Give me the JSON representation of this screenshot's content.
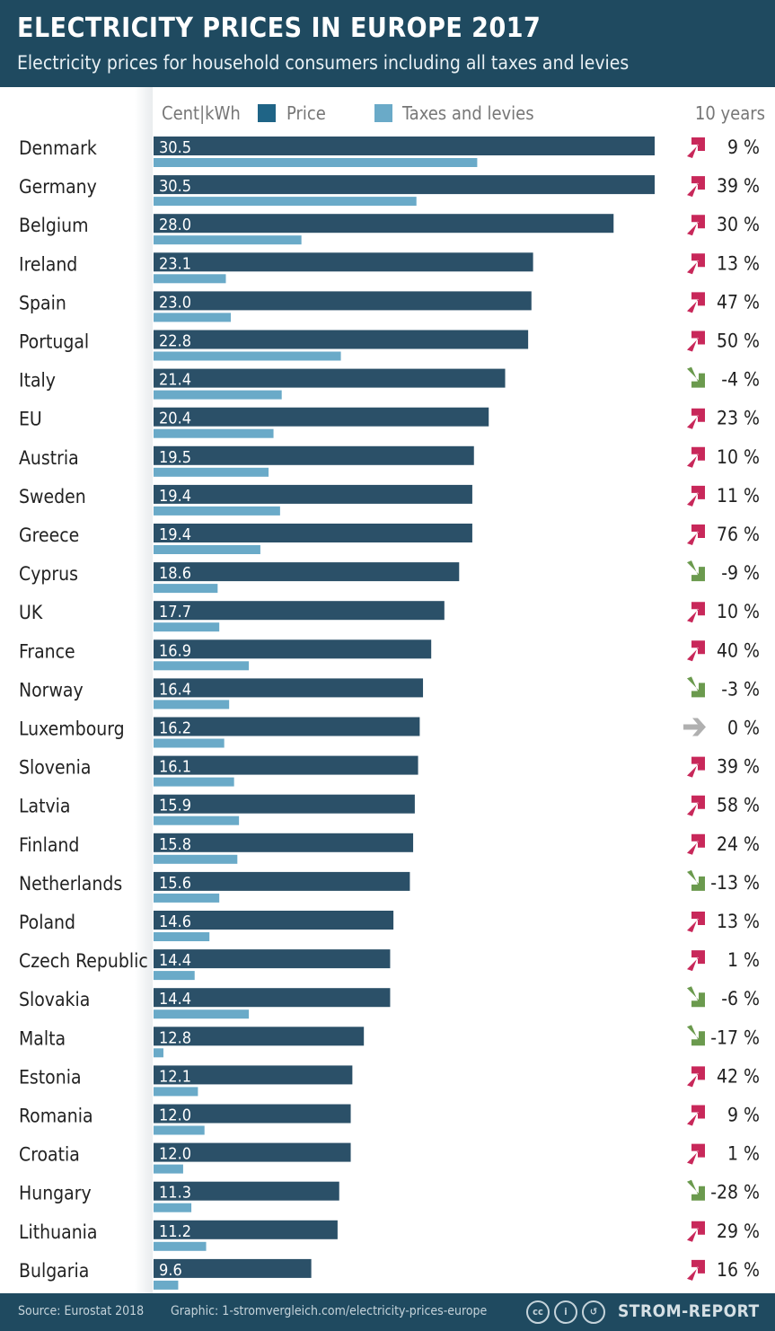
{
  "header": {
    "title": "ELECTRICITY PRICES IN EUROPE 2017",
    "subtitle": "Electricity prices for household consumers including all taxes and levies"
  },
  "footer": {
    "source": "Source: Eurostat 2018",
    "graphic": "Graphic: 1-stromvergleich.com/electricity-prices-europe",
    "brand": "STROM-REPORT",
    "license_icons": [
      "cc",
      "by",
      "sa"
    ]
  },
  "chart_data": {
    "type": "bar",
    "orientation": "horizontal",
    "unit_label": "Cent|kWh",
    "change_header": "10 years",
    "legend": [
      "Price",
      "Taxes and levies"
    ],
    "colors": {
      "price": "#2b5068",
      "taxes": "#6aaac8",
      "up": "#c8285a",
      "down": "#6b9a4e",
      "flat": "#b0b0b0"
    },
    "categories": [
      "Denmark",
      "Germany",
      "Belgium",
      "Ireland",
      "Spain",
      "Portugal",
      "Italy",
      "EU",
      "Austria",
      "Sweden",
      "Greece",
      "Cyprus",
      "UK",
      "France",
      "Norway",
      "Luxembourg",
      "Slovenia",
      "Latvia",
      "Finland",
      "Netherlands",
      "Poland",
      "Czech Republic",
      "Slovakia",
      "Malta",
      "Estonia",
      "Romania",
      "Croatia",
      "Hungary",
      "Lithuania",
      "Bulgaria"
    ],
    "series": [
      {
        "name": "Price",
        "values": [
          30.5,
          30.5,
          28.0,
          23.1,
          23.0,
          22.8,
          21.4,
          20.4,
          19.5,
          19.4,
          19.4,
          18.6,
          17.7,
          16.9,
          16.4,
          16.2,
          16.1,
          15.9,
          15.8,
          15.6,
          14.6,
          14.4,
          14.4,
          12.8,
          12.1,
          12.0,
          12.0,
          11.3,
          11.2,
          9.6
        ]
      },
      {
        "name": "Taxes and levies",
        "values": [
          19.7,
          16.0,
          9.0,
          4.4,
          4.7,
          11.4,
          7.8,
          7.3,
          7.0,
          7.7,
          6.5,
          3.9,
          4.0,
          5.8,
          4.6,
          4.3,
          4.9,
          5.2,
          5.1,
          4.0,
          3.4,
          2.5,
          5.8,
          0.6,
          2.7,
          3.1,
          1.8,
          2.3,
          3.2,
          1.5
        ]
      }
    ],
    "change_10y": [
      9,
      39,
      30,
      13,
      47,
      50,
      -4,
      23,
      10,
      11,
      76,
      -9,
      10,
      40,
      -3,
      0,
      39,
      58,
      24,
      -13,
      13,
      1,
      -6,
      -17,
      42,
      9,
      1,
      -28,
      29,
      16
    ],
    "xlim": [
      0,
      30.5
    ],
    "grid": false
  }
}
